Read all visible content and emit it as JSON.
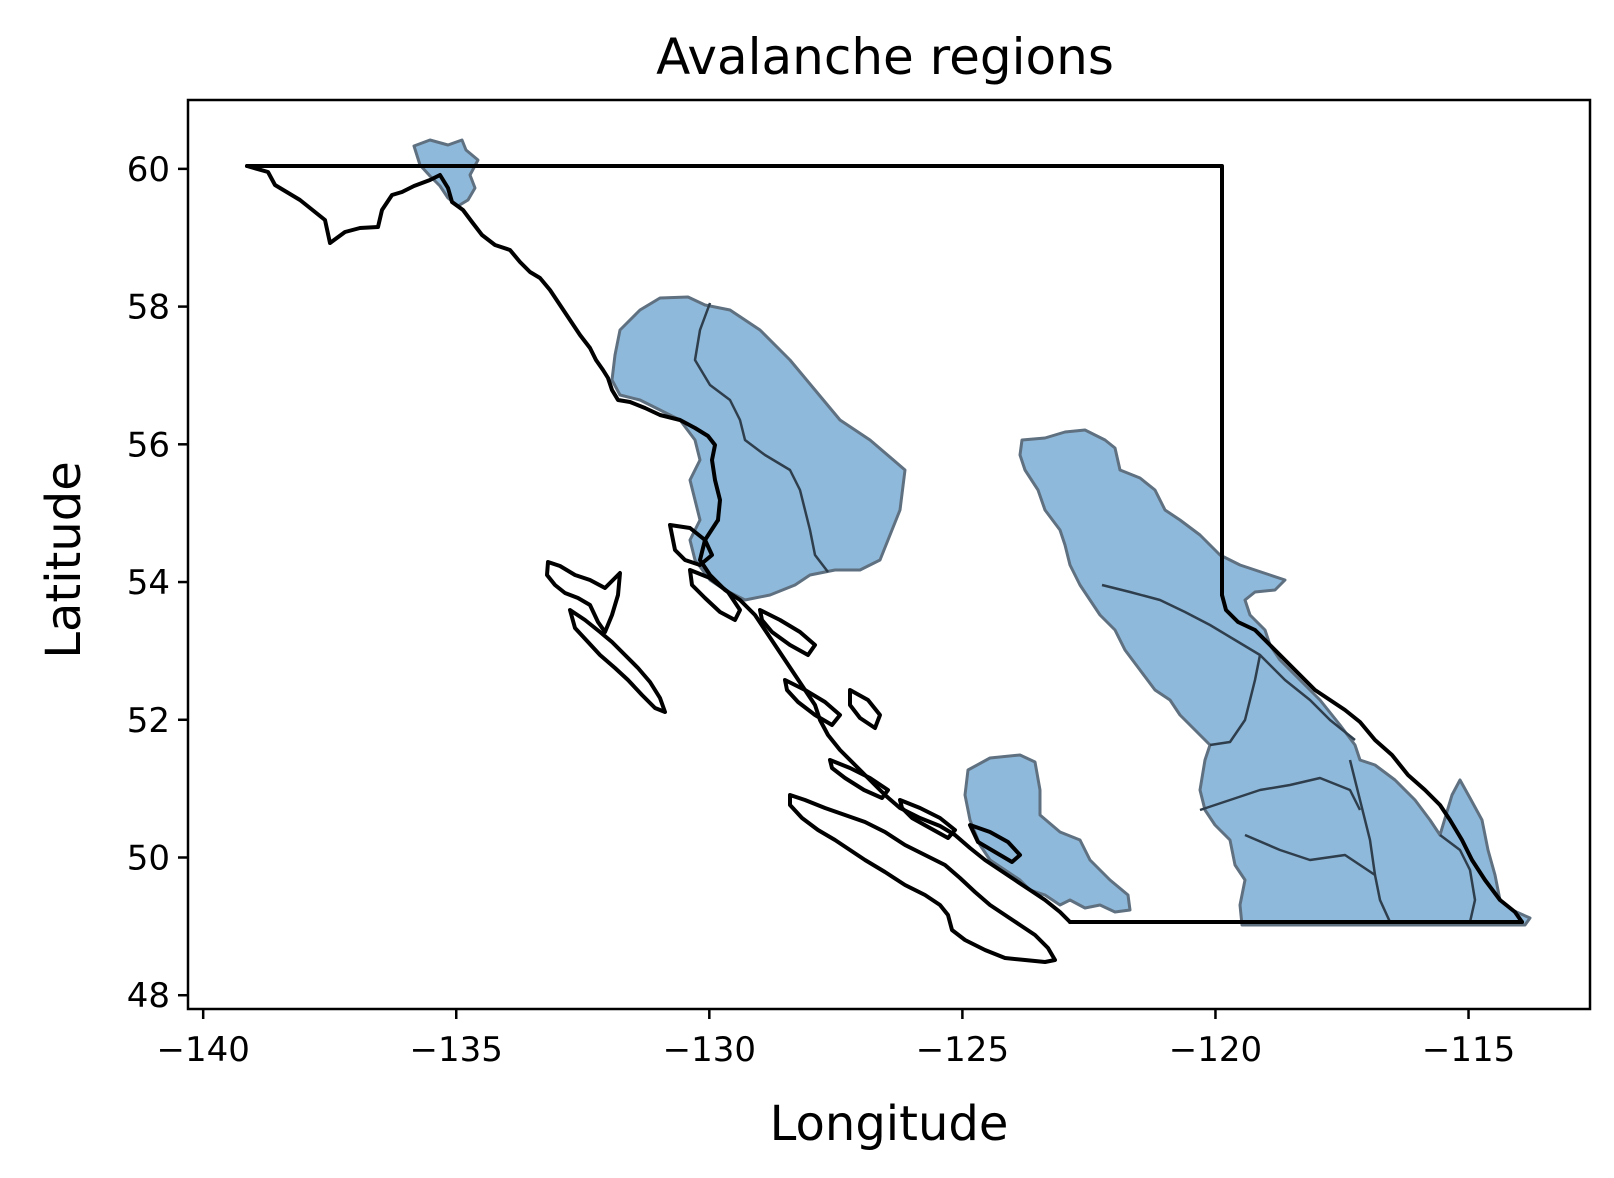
{
  "chart_data": {
    "type": "map",
    "title": "Avalanche regions",
    "xlabel": "Longitude",
    "ylabel": "Latitude",
    "xlim": [
      -140.3,
      -112.6
    ],
    "ylim": [
      47.8,
      61.0
    ],
    "xticks": [
      -140,
      -135,
      -130,
      -125,
      -120,
      -115
    ],
    "yticks": [
      48,
      50,
      52,
      54,
      56,
      58,
      60
    ],
    "xtick_labels": [
      "−140",
      "−135",
      "−130",
      "−125",
      "−120",
      "−115"
    ],
    "ytick_labels": [
      "48",
      "50",
      "52",
      "54",
      "56",
      "58",
      "60"
    ],
    "grid": false,
    "region_color": "#8fb9da",
    "boundary_color": "#000000"
  }
}
